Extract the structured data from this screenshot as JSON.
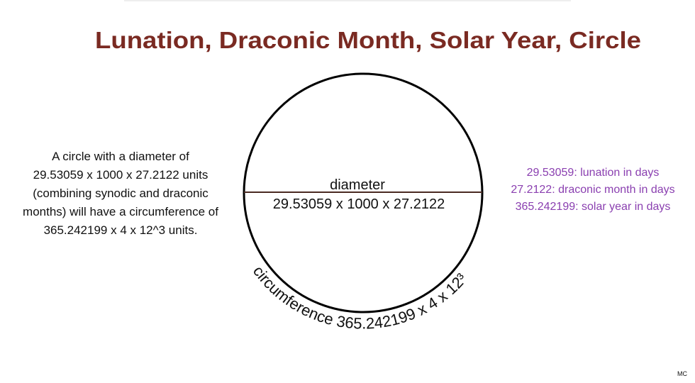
{
  "header": {
    "title": "Lunation, Draconic Month, Solar Year, Circle"
  },
  "description": {
    "lines": [
      "A circle with a diameter of",
      "29.53059 x 1000 x 27.2122 units",
      "(combining synodic and draconic",
      "months) will have a circumference of",
      "365.242199 x 4 x 12^3 units."
    ]
  },
  "circle": {
    "diameter_label": "diameter",
    "diameter_value": "29.53059 x 1000 x 27.2122",
    "circumference": "circumference 365.242199  x 4 x 12³"
  },
  "legend": {
    "lines": [
      "29.53059: lunation in days",
      "27.2122: draconic month in days",
      "365.242199: solar year in days"
    ]
  },
  "footer": {
    "credit": "MC"
  }
}
